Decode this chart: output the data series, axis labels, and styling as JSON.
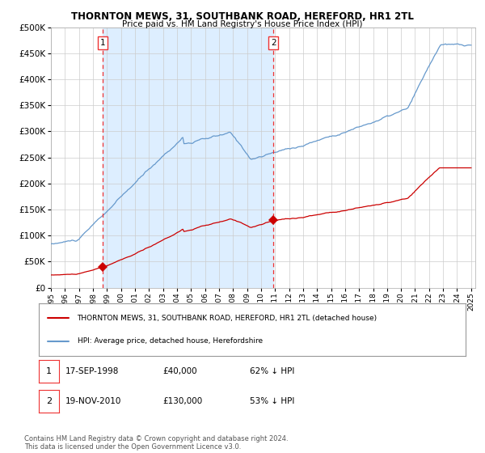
{
  "title": "THORNTON MEWS, 31, SOUTHBANK ROAD, HEREFORD, HR1 2TL",
  "subtitle": "Price paid vs. HM Land Registry's House Price Index (HPI)",
  "sale1_date": "17-SEP-1998",
  "sale1_price": 40000,
  "sale1_label": "62% ↓ HPI",
  "sale2_date": "19-NOV-2010",
  "sale2_price": 130000,
  "sale2_label": "53% ↓ HPI",
  "legend_line1": "THORNTON MEWS, 31, SOUTHBANK ROAD, HEREFORD, HR1 2TL (detached house)",
  "legend_line2": "HPI: Average price, detached house, Herefordshire",
  "footnote": "Contains HM Land Registry data © Crown copyright and database right 2024.\nThis data is licensed under the Open Government Licence v3.0.",
  "red_color": "#cc0000",
  "blue_color": "#6699cc",
  "shade_color": "#ddeeff",
  "dashed_color": "#ee3333",
  "grid_color": "#cccccc",
  "bg_color": "#ffffff",
  "ylim": [
    0,
    500000
  ],
  "xlim_start": 1995.0,
  "xlim_end": 2025.3,
  "sale1_x": 1998.71,
  "sale2_x": 2010.89
}
